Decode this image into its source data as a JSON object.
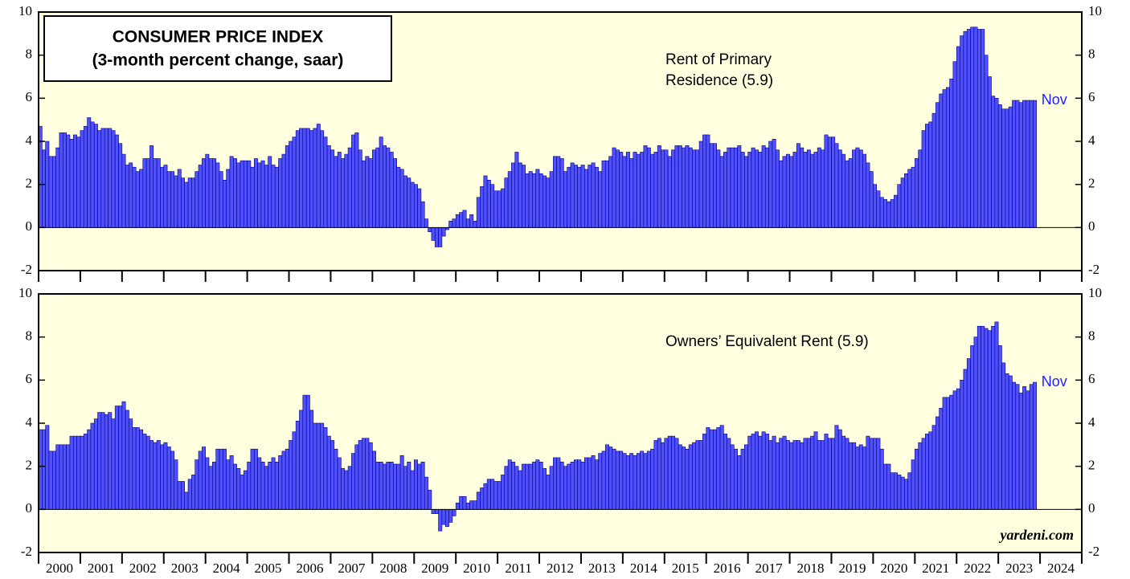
{
  "chart_data": [
    {
      "type": "bar",
      "title": [
        "CONSUMER PRICE INDEX",
        "(3-month percent change, saar)"
      ],
      "label": [
        "Rent of Primary",
        "Residence (5.9)"
      ],
      "annotation": "Nov",
      "background": "#ffffe0",
      "ylim": [
        -2,
        10
      ],
      "yticks": [
        -2,
        0,
        2,
        4,
        6,
        8,
        10
      ],
      "xlim": [
        2000,
        2025
      ],
      "xticks": [
        2000,
        2001,
        2002,
        2003,
        2004,
        2005,
        2006,
        2007,
        2008,
        2009,
        2010,
        2011,
        2012,
        2013,
        2014,
        2015,
        2016,
        2017,
        2018,
        2019,
        2020,
        2021,
        2022,
        2023,
        2024,
        2025
      ],
      "series": [
        {
          "name": "Rent of Primary Residence",
          "color": "#5050ff",
          "values": [
            4.7,
            3.6,
            4.0,
            3.3,
            3.3,
            3.7,
            4.4,
            4.4,
            4.3,
            4.1,
            4.3,
            4.2,
            4.5,
            4.7,
            5.1,
            4.9,
            4.8,
            4.5,
            4.6,
            4.6,
            4.6,
            4.5,
            4.3,
            3.9,
            3.4,
            2.9,
            3.0,
            2.8,
            2.6,
            2.7,
            3.2,
            3.2,
            3.8,
            3.2,
            3.2,
            2.8,
            2.9,
            2.6,
            2.6,
            2.4,
            2.7,
            2.3,
            2.1,
            2.3,
            2.3,
            2.6,
            2.9,
            3.2,
            3.4,
            3.2,
            3.2,
            3.0,
            2.6,
            2.2,
            2.7,
            3.3,
            3.2,
            3.0,
            3.1,
            3.1,
            3.1,
            2.8,
            3.2,
            3.0,
            3.1,
            2.9,
            3.3,
            2.9,
            2.8,
            3.2,
            3.4,
            3.8,
            4.0,
            4.2,
            4.5,
            4.6,
            4.6,
            4.6,
            4.5,
            4.6,
            4.8,
            4.5,
            4.2,
            3.8,
            3.6,
            3.3,
            3.5,
            3.2,
            3.4,
            3.7,
            4.3,
            4.4,
            3.6,
            3.1,
            3.3,
            3.2,
            3.6,
            3.7,
            4.2,
            3.8,
            3.7,
            3.5,
            3.2,
            2.8,
            2.7,
            2.4,
            2.3,
            2.1,
            2.0,
            1.8,
            1.2,
            0.4,
            -0.2,
            -0.6,
            -0.9,
            -0.9,
            -0.4,
            -0.1,
            0.3,
            0.4,
            0.6,
            0.7,
            0.8,
            0.4,
            0.6,
            0.3,
            1.4,
            1.9,
            2.4,
            2.2,
            2.0,
            1.7,
            1.7,
            1.8,
            2.3,
            2.6,
            3.0,
            3.5,
            3.0,
            2.9,
            2.5,
            2.6,
            2.5,
            2.7,
            2.5,
            2.4,
            2.3,
            2.6,
            3.3,
            3.3,
            3.2,
            2.6,
            2.8,
            3.0,
            2.9,
            2.8,
            2.9,
            2.7,
            2.9,
            3.0,
            2.8,
            2.6,
            3.1,
            3.1,
            3.3,
            3.7,
            3.6,
            3.5,
            3.3,
            3.5,
            3.2,
            3.5,
            3.4,
            3.5,
            3.8,
            3.7,
            3.4,
            3.5,
            3.8,
            3.6,
            3.6,
            3.3,
            3.6,
            3.8,
            3.8,
            3.7,
            3.8,
            3.7,
            3.6,
            3.6,
            4.0,
            4.3,
            4.3,
            3.9,
            3.9,
            3.6,
            3.3,
            3.5,
            3.7,
            3.7,
            3.7,
            3.8,
            3.5,
            3.3,
            3.5,
            3.7,
            3.6,
            3.5,
            3.8,
            3.7,
            4.0,
            4.1,
            3.6,
            3.1,
            3.3,
            3.4,
            3.3,
            3.5,
            3.9,
            3.7,
            3.5,
            3.6,
            3.4,
            3.5,
            3.7,
            3.6,
            4.3,
            4.2,
            4.2,
            3.9,
            3.6,
            3.4,
            3.1,
            3.2,
            3.6,
            3.7,
            3.6,
            3.4,
            3.0,
            2.6,
            2.0,
            1.7,
            1.4,
            1.3,
            1.2,
            1.3,
            1.5,
            2.0,
            2.3,
            2.5,
            2.7,
            2.8,
            3.2,
            3.6,
            4.5,
            4.8,
            4.9,
            5.3,
            5.8,
            6.2,
            6.4,
            6.5,
            6.9,
            7.7,
            8.4,
            8.9,
            9.1,
            9.2,
            9.3,
            9.3,
            9.2,
            9.2,
            8.0,
            7.0,
            6.1,
            6.0,
            5.7,
            5.5,
            5.5,
            5.6,
            5.9,
            5.9,
            5.8,
            5.9,
            5.9,
            5.9,
            5.9
          ]
        }
      ]
    },
    {
      "type": "bar",
      "label": [
        "Owners’ Equivalent Rent (5.9)"
      ],
      "annotation": "Nov",
      "source": "yardeni.com",
      "background": "#ffffe0",
      "ylim": [
        -2,
        10
      ],
      "yticks": [
        -2,
        0,
        2,
        4,
        6,
        8,
        10
      ],
      "xlim": [
        2000,
        2025
      ],
      "xticks": [
        2000,
        2001,
        2002,
        2003,
        2004,
        2005,
        2006,
        2007,
        2008,
        2009,
        2010,
        2011,
        2012,
        2013,
        2014,
        2015,
        2016,
        2017,
        2018,
        2019,
        2020,
        2021,
        2022,
        2023,
        2024,
        2025
      ],
      "year_labels": [
        2000,
        2001,
        2002,
        2003,
        2004,
        2005,
        2006,
        2007,
        2008,
        2009,
        2010,
        2011,
        2012,
        2013,
        2014,
        2015,
        2016,
        2017,
        2018,
        2019,
        2020,
        2021,
        2022,
        2023,
        2024
      ],
      "series": [
        {
          "name": "Owners’ Equivalent Rent",
          "color": "#5050ff",
          "values": [
            3.7,
            3.7,
            3.9,
            2.7,
            2.7,
            3.0,
            3.0,
            3.0,
            3.0,
            3.4,
            3.4,
            3.4,
            3.4,
            3.5,
            3.7,
            4.0,
            4.2,
            4.5,
            4.5,
            4.4,
            4.5,
            4.2,
            4.8,
            4.8,
            5.0,
            4.6,
            4.2,
            3.8,
            3.8,
            3.7,
            3.5,
            3.4,
            3.2,
            3.1,
            3.2,
            3.0,
            3.1,
            2.9,
            2.7,
            2.3,
            1.3,
            1.3,
            0.8,
            1.4,
            1.6,
            2.3,
            2.7,
            2.9,
            2.4,
            2.0,
            2.2,
            2.8,
            2.8,
            2.8,
            2.3,
            2.5,
            2.1,
            1.9,
            1.6,
            1.8,
            2.2,
            2.8,
            2.8,
            2.4,
            2.2,
            2.0,
            2.2,
            2.4,
            2.2,
            2.5,
            2.7,
            2.8,
            3.2,
            3.6,
            4.1,
            4.6,
            5.3,
            5.3,
            4.6,
            4.0,
            4.0,
            4.0,
            3.8,
            3.4,
            3.2,
            2.8,
            2.4,
            1.9,
            1.8,
            2.0,
            2.6,
            3.0,
            3.2,
            3.3,
            3.3,
            3.1,
            2.7,
            2.2,
            2.2,
            2.1,
            2.2,
            2.2,
            2.1,
            2.1,
            2.5,
            2.0,
            2.2,
            1.8,
            2.3,
            2.1,
            2.2,
            1.5,
            0.9,
            -0.2,
            -0.2,
            -1.0,
            -0.7,
            -0.8,
            -0.6,
            -0.3,
            0.3,
            0.6,
            0.6,
            0.3,
            0.4,
            0.4,
            0.8,
            1.0,
            1.2,
            1.4,
            1.4,
            1.3,
            1.3,
            1.6,
            2.0,
            2.3,
            2.2,
            2.0,
            1.8,
            2.1,
            2.1,
            2.1,
            2.2,
            2.3,
            2.2,
            1.9,
            1.6,
            2.0,
            2.4,
            2.4,
            2.2,
            2.0,
            2.1,
            2.2,
            2.3,
            2.3,
            2.2,
            2.4,
            2.4,
            2.5,
            2.3,
            2.6,
            2.7,
            3.0,
            2.9,
            2.8,
            2.7,
            2.7,
            2.6,
            2.5,
            2.6,
            2.5,
            2.6,
            2.7,
            2.6,
            2.7,
            2.8,
            3.2,
            3.3,
            3.1,
            3.3,
            3.4,
            3.4,
            3.3,
            3.0,
            2.9,
            2.8,
            3.0,
            3.1,
            3.2,
            3.2,
            3.5,
            3.8,
            3.7,
            3.7,
            3.8,
            3.9,
            3.5,
            3.3,
            3.0,
            2.8,
            2.5,
            2.8,
            3.0,
            3.4,
            3.5,
            3.6,
            3.4,
            3.6,
            3.5,
            3.2,
            3.4,
            3.1,
            3.3,
            3.4,
            3.2,
            3.1,
            3.2,
            3.2,
            3.1,
            3.3,
            3.3,
            3.4,
            3.6,
            3.2,
            3.2,
            3.5,
            3.3,
            3.3,
            3.9,
            3.7,
            3.4,
            3.3,
            3.1,
            3.1,
            2.9,
            3.0,
            2.9,
            3.4,
            3.3,
            3.3,
            3.3,
            2.8,
            2.1,
            2.1,
            1.7,
            1.7,
            1.6,
            1.5,
            1.4,
            1.7,
            2.3,
            2.8,
            3.1,
            3.3,
            3.5,
            3.6,
            3.9,
            4.3,
            4.7,
            5.2,
            5.2,
            5.3,
            5.5,
            5.6,
            6.0,
            6.5,
            7.0,
            7.6,
            8.0,
            8.5,
            8.5,
            8.4,
            8.3,
            8.5,
            8.7,
            7.6,
            6.8,
            6.3,
            6.2,
            5.9,
            5.8,
            5.4,
            5.7,
            5.5,
            5.8,
            5.9
          ]
        }
      ]
    }
  ]
}
